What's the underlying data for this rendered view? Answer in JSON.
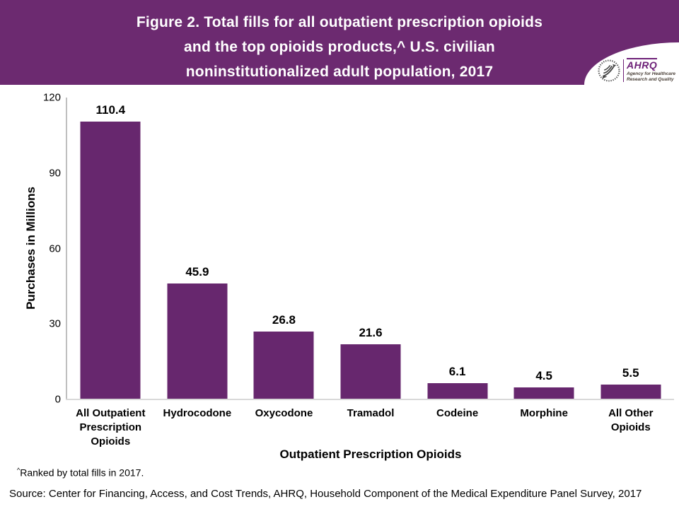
{
  "header": {
    "title_lines": [
      "Figure 2. Total fills for all outpatient prescription opioids",
      "and the top opioids products,^ U.S. civilian",
      "noninstitutionalized adult population, 2017"
    ],
    "background_color": "#6c2a70",
    "logo": {
      "hhs_icon": "hhs-eagle-icon",
      "ahrq": "AHRQ",
      "tagline_line1": "Agency for Healthcare",
      "tagline_line2": "Research and Quality",
      "ahrq_color": "#6d2077"
    }
  },
  "chart_data": {
    "type": "bar",
    "categories": [
      "All Outpatient\nPrescription\nOpioids",
      "Hydrocodone",
      "Oxycodone",
      "Tramadol",
      "Codeine",
      "Morphine",
      "All Other\nOpioids"
    ],
    "values": [
      110.4,
      45.9,
      26.8,
      21.6,
      6.1,
      4.5,
      5.5
    ],
    "data_labels": [
      "110.4",
      "45.9",
      "26.8",
      "21.6",
      "6.1",
      "4.5",
      "5.5"
    ],
    "xlabel": "Outpatient Prescription Opioids",
    "ylabel": "Purchases in Millions",
    "ylim": [
      0,
      120
    ],
    "yticks": [
      0,
      30,
      60,
      90,
      120
    ],
    "bar_color": "#67276e",
    "grid": false,
    "legend": "none"
  },
  "footnote": {
    "marker": "^",
    "text": "Ranked by total fills in 2017."
  },
  "source": "Source: Center for Financing, Access, and Cost Trends, AHRQ, Household Component of the Medical Expenditure Panel Survey, 2017"
}
